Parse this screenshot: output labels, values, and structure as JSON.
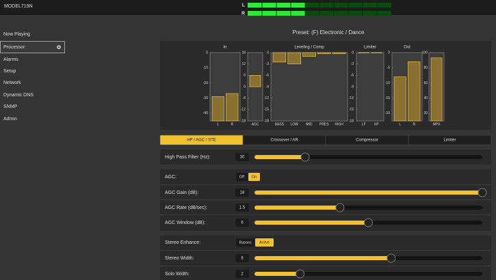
{
  "header": {
    "model": "MODEL719N",
    "meters": {
      "xlim": [
        -60,
        0
      ],
      "channels": [
        {
          "label": "L",
          "value": -36
        },
        {
          "label": "R",
          "value": -36
        }
      ]
    }
  },
  "nav": {
    "items": [
      "Now Playing",
      "Processor",
      "Alarms",
      "Setup",
      "Network",
      "Dynamic DNS",
      "SNMP",
      "Admin"
    ],
    "active": 1
  },
  "preset": "Preset: (F) Electronic / Dance",
  "meters": [
    {
      "title": "In",
      "ylim": [
        -45,
        0
      ],
      "yticks": [
        0,
        -10,
        -20,
        -30,
        -40
      ],
      "fill": "bottom",
      "bars": [
        {
          "label": "L",
          "value": -29
        },
        {
          "label": "R",
          "value": -27
        }
      ]
    },
    {
      "ylim": [
        -18,
        18
      ],
      "yticks": [
        18,
        12,
        6,
        0,
        -6,
        -12,
        -18
      ],
      "fill": "zero",
      "bars": [
        {
          "label": "AGC",
          "value": 6
        }
      ]
    },
    {
      "title": "Leveling / Comp",
      "ylim": [
        -18,
        0
      ],
      "yticks": [
        0,
        -3,
        -6,
        -9,
        -12,
        -15,
        -18
      ],
      "fill": "zero",
      "bars": [
        {
          "label": "BASS",
          "value": -2.5
        },
        {
          "label": "LOW",
          "value": -3
        },
        {
          "label": "MID",
          "value": -1
        },
        {
          "label": "PRES",
          "value": -0.3
        },
        {
          "label": "HIGH",
          "value": -0.3
        }
      ]
    },
    {
      "title": "Limiter",
      "ylim": [
        -18,
        0
      ],
      "yticks": [
        0,
        -3,
        -6,
        -9,
        -12,
        -15,
        -18
      ],
      "fill": "zero",
      "bars": [
        {
          "label": "LF",
          "value": 0
        },
        {
          "label": "HF",
          "value": 0
        }
      ]
    },
    {
      "title": "Out",
      "ylim": [
        -22.5,
        0
      ],
      "yticks": [
        0,
        -5,
        -10,
        -15,
        -20
      ],
      "fill": "bottom",
      "bars": [
        {
          "label": "L",
          "value": -8
        },
        {
          "label": "R",
          "value": -3
        }
      ]
    },
    {
      "ylim": [
        10,
        100
      ],
      "yticks": [
        100,
        80,
        60,
        40,
        20
      ],
      "fill": "bottom",
      "bars": [
        {
          "label": "MPX",
          "value": 93
        }
      ]
    }
  ],
  "tabs": {
    "items": [
      "HP / AGC / STE",
      "Crossover / AR",
      "Compressor",
      "Limiter"
    ],
    "active": 0
  },
  "controls": [
    {
      "label": "High Pass Filter (Hz):",
      "type": "slider",
      "value": 30,
      "xlim": [
        10,
        100
      ]
    },
    {
      "label": "AGC:",
      "type": "toggle",
      "options": [
        "Off",
        "On"
      ],
      "active": 1
    },
    {
      "label": "AGC Gain (dB):",
      "type": "slider",
      "value": 18,
      "xlim": [
        0,
        18
      ]
    },
    {
      "label": "AGC Rate (dB/sec):",
      "type": "slider",
      "value": 1.5,
      "xlim": [
        0,
        4
      ]
    },
    {
      "label": "AGC Window (dB):",
      "type": "slider",
      "value": 6,
      "xlim": [
        0,
        12
      ]
    },
    {
      "label": "Stereo Enhance:",
      "type": "toggle",
      "options": [
        "Bypass",
        "Active"
      ],
      "active": 1
    },
    {
      "label": "Stereo Width:",
      "type": "slider",
      "value": 8,
      "xlim": [
        2,
        12
      ]
    },
    {
      "label": "Solo Width:",
      "type": "slider",
      "value": 2,
      "xlim": [
        0,
        10
      ]
    }
  ]
}
